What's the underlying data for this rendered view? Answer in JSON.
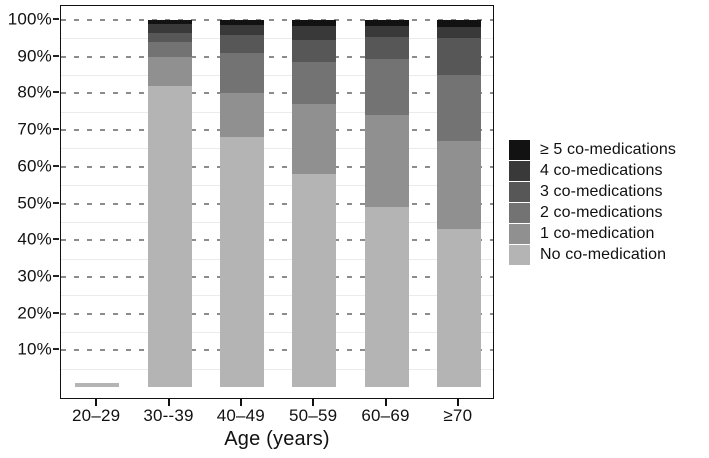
{
  "chart_data": {
    "type": "bar",
    "subtype": "stacked-percentage",
    "title": "",
    "xlabel": "Age (years)",
    "ylabel": "",
    "ylim": [
      0,
      100
    ],
    "grid": "major dashed every 10%, minor solid every 5%",
    "legend_position": "right",
    "categories": [
      "20–29",
      "30--39",
      "40–49",
      "50–59",
      "60–69",
      "≥70"
    ],
    "y_tick_labels": [
      "100%",
      "90%",
      "80%",
      "70%",
      "60%",
      "50%",
      "40%",
      "30%",
      "20%",
      "10%"
    ],
    "y_tick_values": [
      100,
      90,
      80,
      70,
      60,
      50,
      40,
      30,
      20,
      10
    ],
    "series": [
      {
        "name": "No co-medication",
        "color": "#b4b4b4",
        "values": [
          1,
          82,
          68,
          58,
          49,
          43
        ]
      },
      {
        "name": "1 co-medication",
        "color": "#909090",
        "values": [
          0,
          8,
          12,
          19,
          25,
          24
        ]
      },
      {
        "name": "2 co-medications",
        "color": "#737373",
        "values": [
          0,
          4,
          11,
          11.5,
          15.5,
          18
        ]
      },
      {
        "name": "3 co-medications",
        "color": "#575757",
        "values": [
          0,
          2.5,
          5,
          6,
          6,
          10
        ]
      },
      {
        "name": "4 co-medications",
        "color": "#393939",
        "values": [
          0,
          2.5,
          2.6,
          4,
          3,
          3
        ]
      },
      {
        "name": "≥ 5 co-medications",
        "color": "#121212",
        "values": [
          0,
          1,
          1.4,
          1.5,
          1.5,
          2
        ]
      }
    ],
    "legend_order_top_to_bottom": [
      "≥ 5 co-medications",
      "4 co-medications",
      "3 co-medications",
      "2 co-medications",
      "1 co-medication",
      "No co-medication"
    ],
    "colors": {
      "axis_text": "#111111",
      "panel_border": "#111111",
      "major_grid": "#8c8c8c",
      "minor_grid": "#ebebeb",
      "background": "#ffffff"
    }
  },
  "axis": {
    "x_title": "Age (years)"
  }
}
